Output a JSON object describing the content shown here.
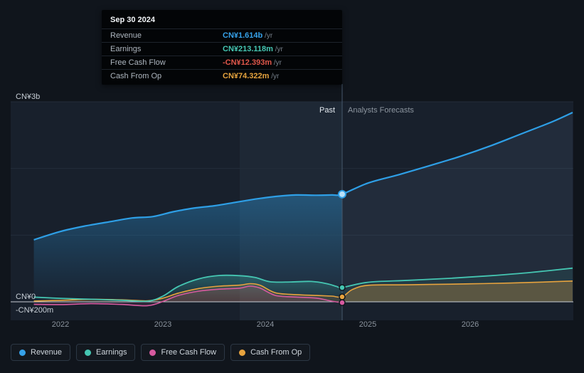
{
  "tooltip": {
    "date": "Sep 30 2024",
    "rows": [
      {
        "id": "revenue",
        "label": "Revenue",
        "value": "CN¥1.614b",
        "suffix": "/yr",
        "color": "#36a2ea"
      },
      {
        "id": "earnings",
        "label": "Earnings",
        "value": "CN¥213.118m",
        "suffix": "/yr",
        "color": "#46c8b4"
      },
      {
        "id": "fcf",
        "label": "Free Cash Flow",
        "value": "-CN¥12.393m",
        "suffix": "/yr",
        "color": "#e0574a"
      },
      {
        "id": "cashop",
        "label": "Cash From Op",
        "value": "CN¥74.322m",
        "suffix": "/yr",
        "color": "#e7a33e"
      }
    ]
  },
  "region_labels": {
    "past": "Past",
    "forecast": "Analysts Forecasts"
  },
  "legend": [
    {
      "id": "revenue",
      "label": "Revenue",
      "color": "#36a2ea"
    },
    {
      "id": "earnings",
      "label": "Earnings",
      "color": "#45c6b2"
    },
    {
      "id": "fcf",
      "label": "Free Cash Flow",
      "color": "#d75aa0"
    },
    {
      "id": "cashop",
      "label": "Cash From Op",
      "color": "#e7a33e"
    }
  ],
  "chart_data": {
    "type": "line",
    "unit": "CN¥ millions per year (trailing twelve months)",
    "x_unit": "calendar year",
    "divider_x": 2024.75,
    "divider_date": "Sep 30 2024",
    "xlim": [
      2021.5,
      2027.05
    ],
    "ylim": [
      -200,
      3000
    ],
    "x_ticks": [
      2022,
      2023,
      2024,
      2025,
      2026
    ],
    "y_ticks": [
      {
        "label": "CN¥3b",
        "value": 3000
      },
      {
        "label": "CN¥0",
        "value": 0
      },
      {
        "label": "-CN¥200m",
        "value": -200
      }
    ],
    "series": [
      {
        "id": "revenue",
        "name": "Revenue",
        "color": "#2e9fe6",
        "value_at_divider": 1614,
        "past": [
          [
            2021.74,
            930
          ],
          [
            2022,
            1055
          ],
          [
            2022.25,
            1140
          ],
          [
            2022.5,
            1205
          ],
          [
            2022.7,
            1258
          ],
          [
            2022.9,
            1278
          ],
          [
            2023.1,
            1350
          ],
          [
            2023.3,
            1405
          ],
          [
            2023.5,
            1440
          ],
          [
            2023.7,
            1490
          ],
          [
            2023.9,
            1540
          ],
          [
            2024.1,
            1580
          ],
          [
            2024.3,
            1602
          ],
          [
            2024.5,
            1598
          ],
          [
            2024.65,
            1602
          ],
          [
            2024.75,
            1614
          ]
        ],
        "forecast": [
          [
            2024.75,
            1614
          ],
          [
            2025,
            1780
          ],
          [
            2025.3,
            1905
          ],
          [
            2025.6,
            2040
          ],
          [
            2025.9,
            2180
          ],
          [
            2026.2,
            2340
          ],
          [
            2026.5,
            2520
          ],
          [
            2026.8,
            2700
          ],
          [
            2027,
            2840
          ]
        ]
      },
      {
        "id": "earnings",
        "name": "Earnings",
        "color": "#45c6b2",
        "value_at_divider": 213.118,
        "past": [
          [
            2021.74,
            70
          ],
          [
            2022,
            52
          ],
          [
            2022.3,
            38
          ],
          [
            2022.6,
            24
          ],
          [
            2022.85,
            10
          ],
          [
            2023,
            85
          ],
          [
            2023.15,
            230
          ],
          [
            2023.35,
            345
          ],
          [
            2023.55,
            395
          ],
          [
            2023.75,
            392
          ],
          [
            2023.9,
            365
          ],
          [
            2024.05,
            300
          ],
          [
            2024.25,
            298
          ],
          [
            2024.45,
            305
          ],
          [
            2024.6,
            272
          ],
          [
            2024.7,
            228
          ],
          [
            2024.75,
            213.118
          ]
        ],
        "forecast": [
          [
            2024.75,
            213.118
          ],
          [
            2025,
            292
          ],
          [
            2025.4,
            322
          ],
          [
            2025.8,
            352
          ],
          [
            2026.2,
            392
          ],
          [
            2026.6,
            442
          ],
          [
            2027,
            505
          ]
        ]
      },
      {
        "id": "fcf",
        "name": "Free Cash Flow",
        "color": "#d75aa0",
        "value_at_divider": -12.393,
        "past": [
          [
            2021.74,
            -38
          ],
          [
            2022,
            -42
          ],
          [
            2022.3,
            -28
          ],
          [
            2022.6,
            -40
          ],
          [
            2022.85,
            -58
          ],
          [
            2023,
            5
          ],
          [
            2023.15,
            95
          ],
          [
            2023.35,
            160
          ],
          [
            2023.55,
            190
          ],
          [
            2023.75,
            205
          ],
          [
            2023.85,
            235
          ],
          [
            2023.95,
            205
          ],
          [
            2024.1,
            95
          ],
          [
            2024.3,
            72
          ],
          [
            2024.5,
            55
          ],
          [
            2024.65,
            10
          ],
          [
            2024.75,
            -12.393
          ]
        ],
        "forecast": []
      },
      {
        "id": "cashop",
        "name": "Cash From Op",
        "color": "#e7a33e",
        "value_at_divider": 74.322,
        "past": [
          [
            2021.74,
            12
          ],
          [
            2022,
            22
          ],
          [
            2022.3,
            38
          ],
          [
            2022.6,
            30
          ],
          [
            2022.85,
            15
          ],
          [
            2023,
            55
          ],
          [
            2023.15,
            130
          ],
          [
            2023.35,
            200
          ],
          [
            2023.55,
            235
          ],
          [
            2023.75,
            250
          ],
          [
            2023.85,
            272
          ],
          [
            2023.95,
            248
          ],
          [
            2024.1,
            135
          ],
          [
            2024.3,
            108
          ],
          [
            2024.5,
            95
          ],
          [
            2024.65,
            85
          ],
          [
            2024.75,
            74.322
          ]
        ],
        "forecast": [
          [
            2024.75,
            74.322
          ],
          [
            2024.85,
            185
          ],
          [
            2025,
            248
          ],
          [
            2025.3,
            254
          ],
          [
            2025.6,
            260
          ],
          [
            2026,
            270
          ],
          [
            2026.4,
            282
          ],
          [
            2026.7,
            296
          ],
          [
            2027,
            312
          ]
        ]
      }
    ]
  }
}
